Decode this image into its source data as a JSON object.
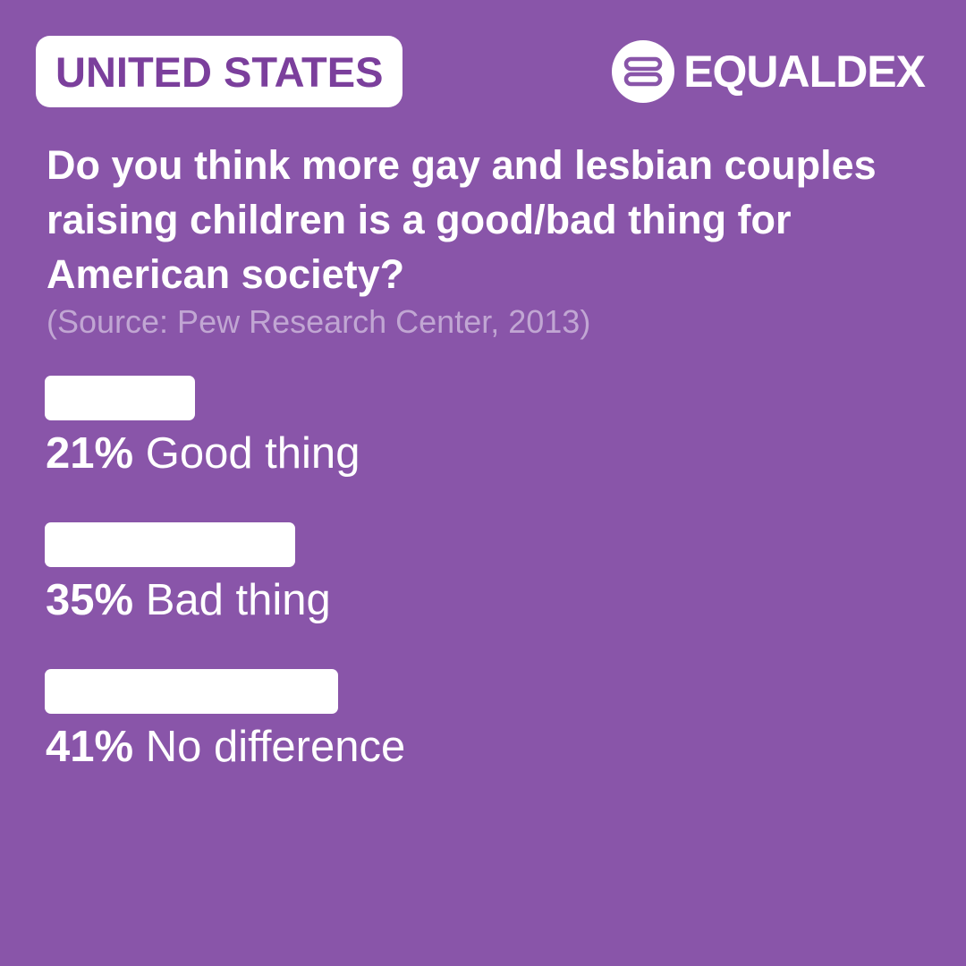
{
  "header": {
    "country": "UNITED STATES",
    "brand_name": "EQUALDEX",
    "brand_icon": "equaldex-logo-icon"
  },
  "question": "Do you think more gay and lesbian couples raising children is a good/bad thing for American society?",
  "source": "(Source: Pew Research Center, 2013)",
  "colors": {
    "background": "#8955a9",
    "badge_text": "#7b3f9c",
    "bar": "#ffffff",
    "source_text": "#c1a6d3"
  },
  "chart_data": {
    "type": "bar",
    "orientation": "horizontal",
    "categories": [
      "Good thing",
      "Bad thing",
      "No difference"
    ],
    "values": [
      21,
      35,
      41
    ],
    "value_labels": [
      "21%",
      "35%",
      "41%"
    ],
    "unit": "%",
    "xlim": [
      0,
      100
    ],
    "grid": false,
    "legend": "none"
  }
}
